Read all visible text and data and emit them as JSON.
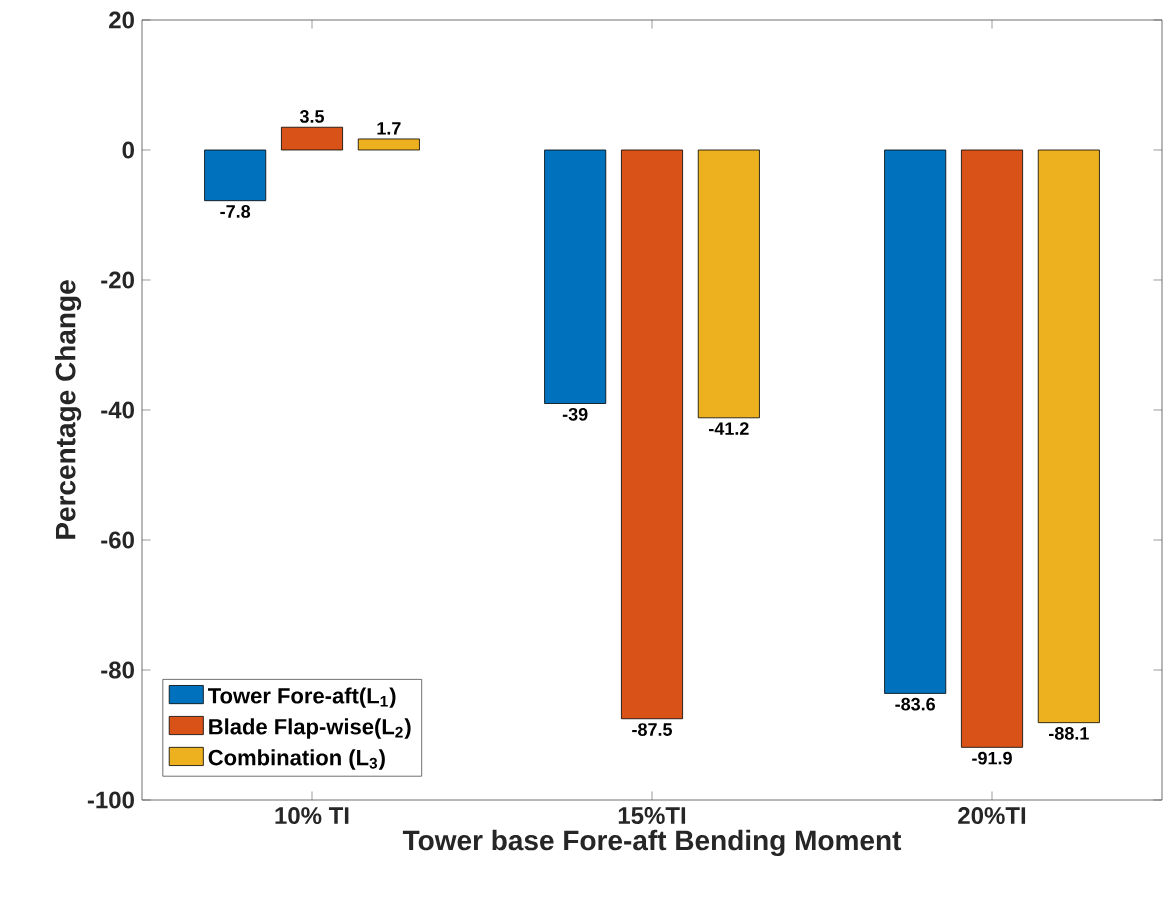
{
  "chart_data": {
    "type": "bar",
    "xlabel": "Tower base Fore-aft Bending Moment",
    "ylabel": "Percentage Change",
    "categories": [
      "10% TI",
      "15%TI",
      "20%TI"
    ],
    "series": [
      {
        "name": "Tower Fore-aft(L$_{1}$)",
        "color": "#0072bd",
        "values": [
          -7.8,
          -39,
          -83.6
        ]
      },
      {
        "name": "Blade Flap-wise(L$_{2}$)",
        "color": "#d95319",
        "values": [
          3.5,
          -87.5,
          -91.9
        ]
      },
      {
        "name": "Combination (L$_{3}$)",
        "color": "#edb120",
        "values": [
          1.7,
          -41.2,
          -88.1
        ]
      }
    ],
    "ylim": [
      -100,
      20
    ],
    "yticks": [
      -100,
      -80,
      -60,
      -40,
      -20,
      0,
      20
    ],
    "data_labels": true,
    "legend": "bottom left",
    "grid": false
  }
}
